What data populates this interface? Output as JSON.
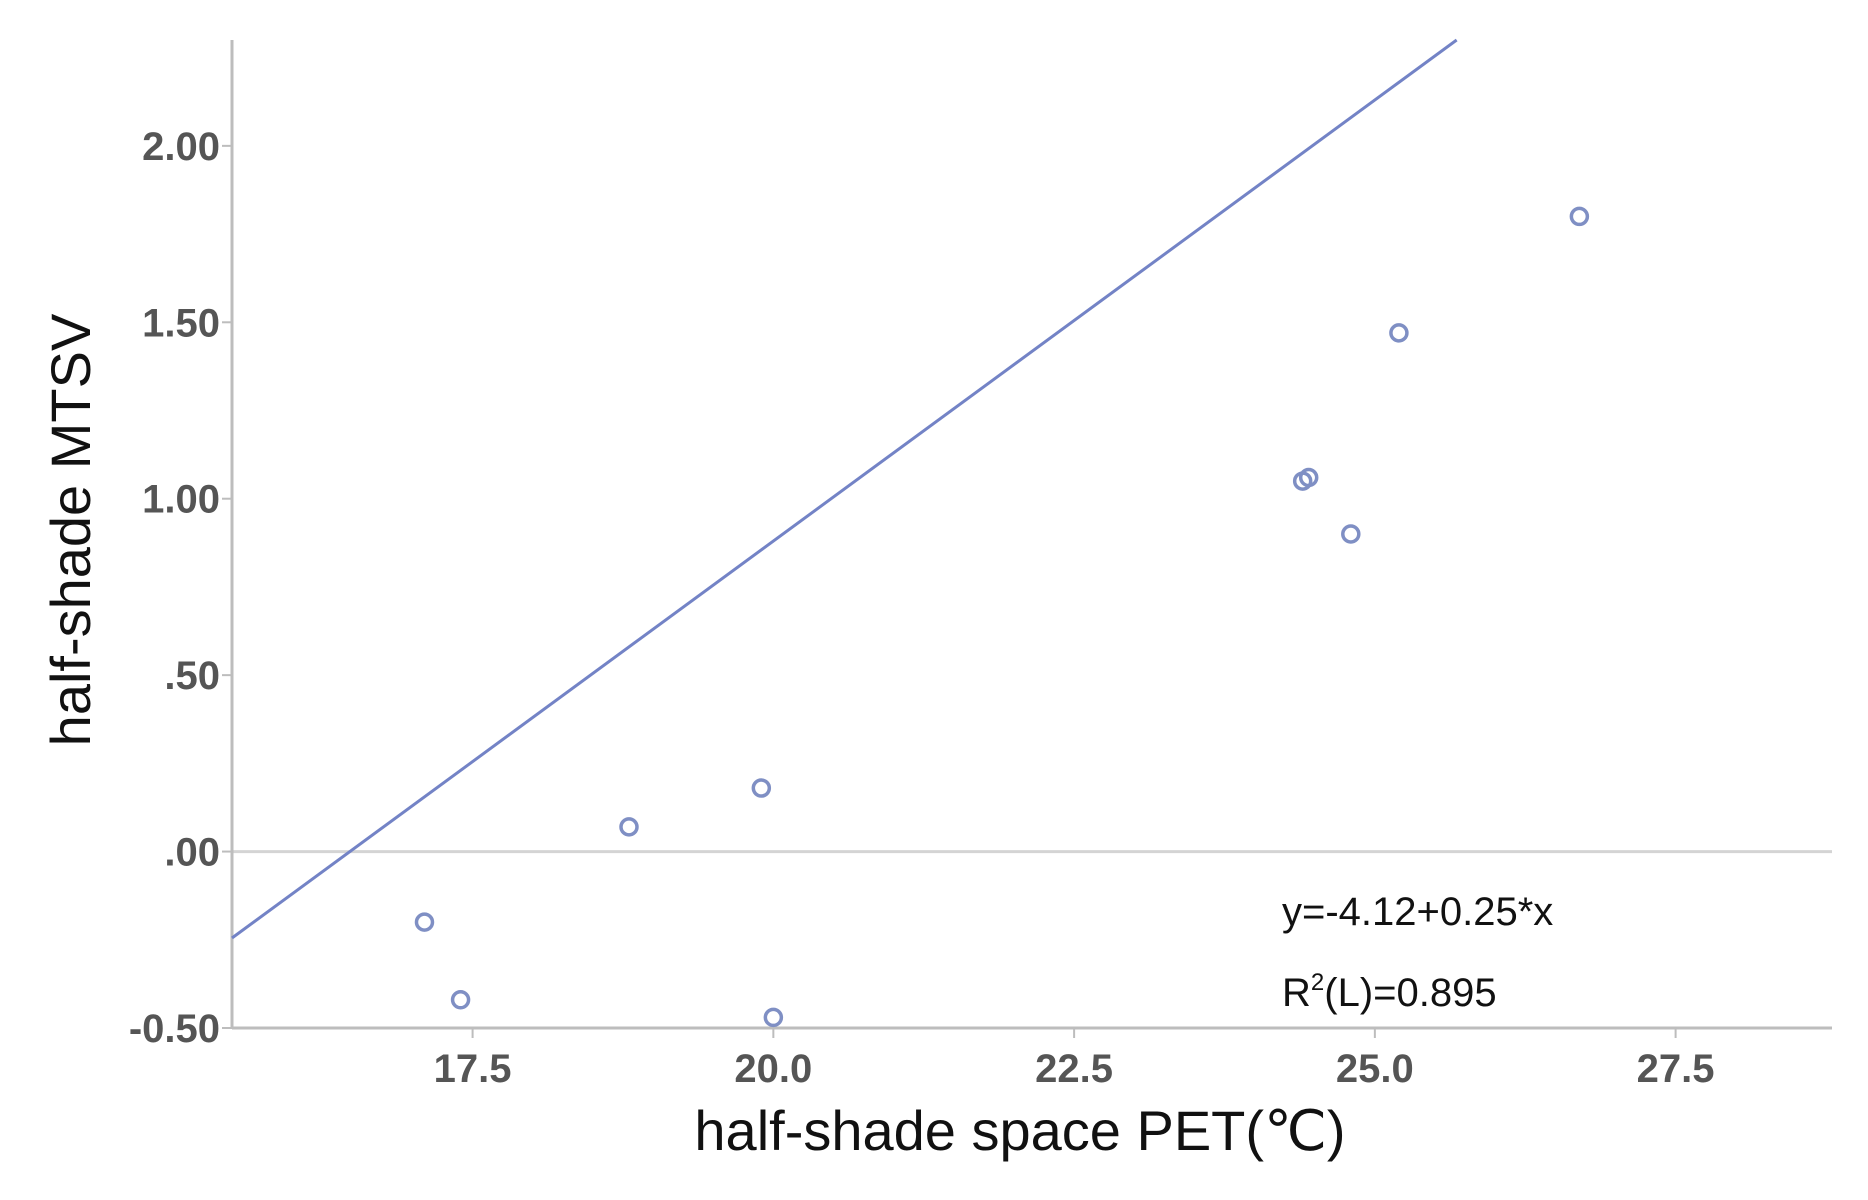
{
  "chart_data": {
    "type": "scatter",
    "xlabel": "half-shade space PET(℃)",
    "ylabel": "half-shade MTSV",
    "xlim": [
      15.5,
      28.8
    ],
    "ylim": [
      -0.5,
      2.3
    ],
    "x_ticks": [
      17.5,
      20.0,
      22.5,
      25.0,
      27.5
    ],
    "x_tick_labels": [
      "17.5",
      "20.0",
      "22.5",
      "25.0",
      "27.5"
    ],
    "y_ticks": [
      -0.5,
      0.0,
      0.5,
      1.0,
      1.5,
      2.0
    ],
    "y_tick_labels": [
      "-0.50",
      ".00",
      ".50",
      "1.00",
      "1.50",
      "2.00"
    ],
    "reference_line_y": 0.0,
    "points": [
      {
        "x": 17.1,
        "y": -0.2
      },
      {
        "x": 17.4,
        "y": -0.42
      },
      {
        "x": 18.8,
        "y": 0.07
      },
      {
        "x": 19.9,
        "y": 0.18
      },
      {
        "x": 20.0,
        "y": -0.47
      },
      {
        "x": 24.4,
        "y": 1.05
      },
      {
        "x": 24.45,
        "y": 1.06
      },
      {
        "x": 24.8,
        "y": 0.9
      },
      {
        "x": 25.2,
        "y": 1.47
      },
      {
        "x": 26.7,
        "y": 1.8
      }
    ],
    "fit_line": {
      "intercept": -4.12,
      "slope": 0.25
    },
    "annotations": {
      "equation": "y=-4.12+0.25*x",
      "r2_prefix": "R",
      "r2_superscript": "2",
      "r2_suffix": "(L)=0.895"
    },
    "colors": {
      "marker": "#7f8fc4",
      "fit_line": "#7383c6",
      "axis": "#bdbdbd",
      "tick_text": "#555555",
      "label_text": "#111111"
    }
  }
}
